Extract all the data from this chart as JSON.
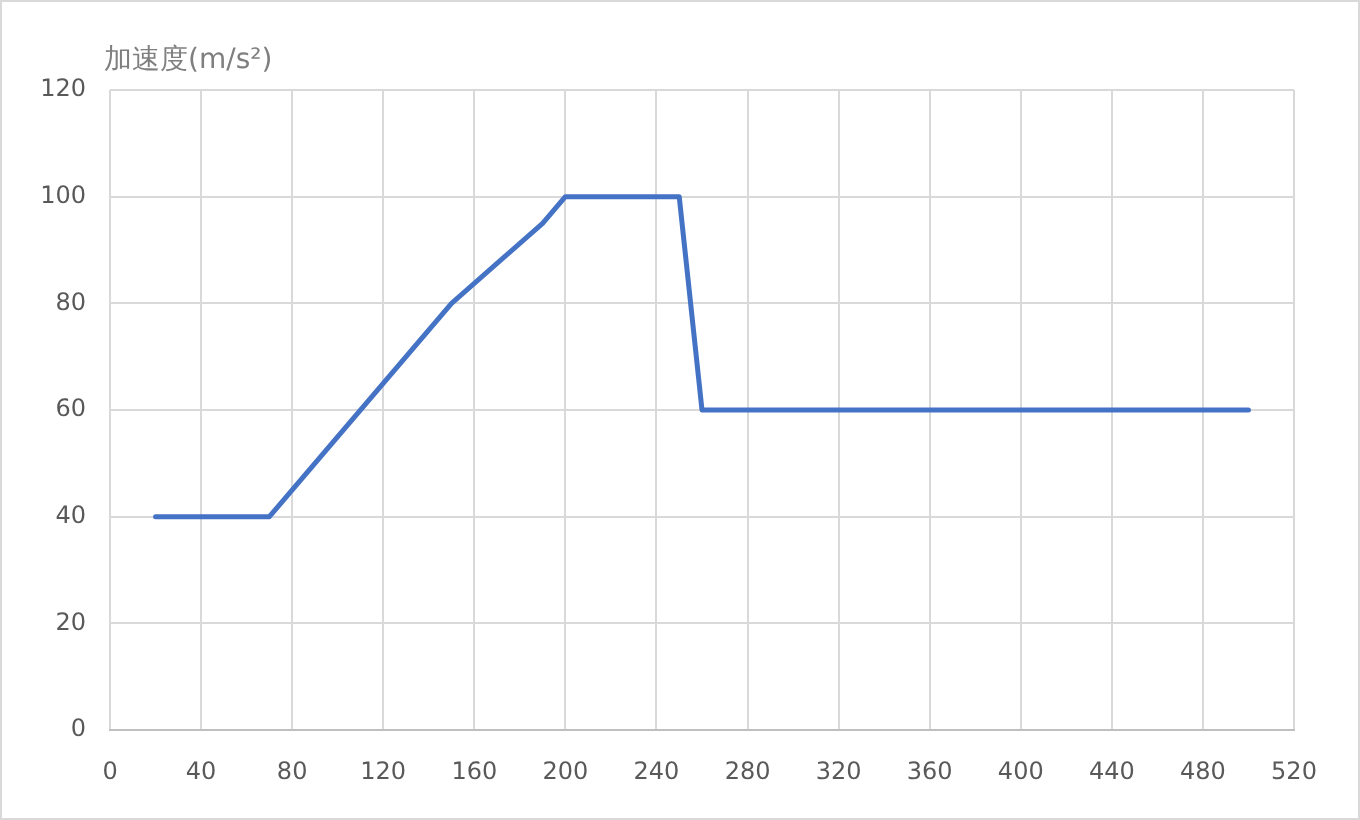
{
  "chart_data": {
    "type": "line",
    "ylabel": "加速度(m/s²)",
    "x": [
      20,
      70,
      150,
      190,
      200,
      250,
      260,
      500
    ],
    "series": [
      {
        "color": "#4472c4",
        "values": [
          40,
          40,
          80,
          95,
          100,
          100,
          60,
          60
        ]
      }
    ],
    "xlim": [
      0,
      520
    ],
    "xticks": [
      0,
      40,
      80,
      120,
      160,
      200,
      240,
      280,
      320,
      360,
      400,
      440,
      480,
      520
    ],
    "ylim": [
      0,
      120
    ],
    "yticks": [
      0,
      20,
      40,
      60,
      80,
      100,
      120
    ],
    "grid": true
  }
}
